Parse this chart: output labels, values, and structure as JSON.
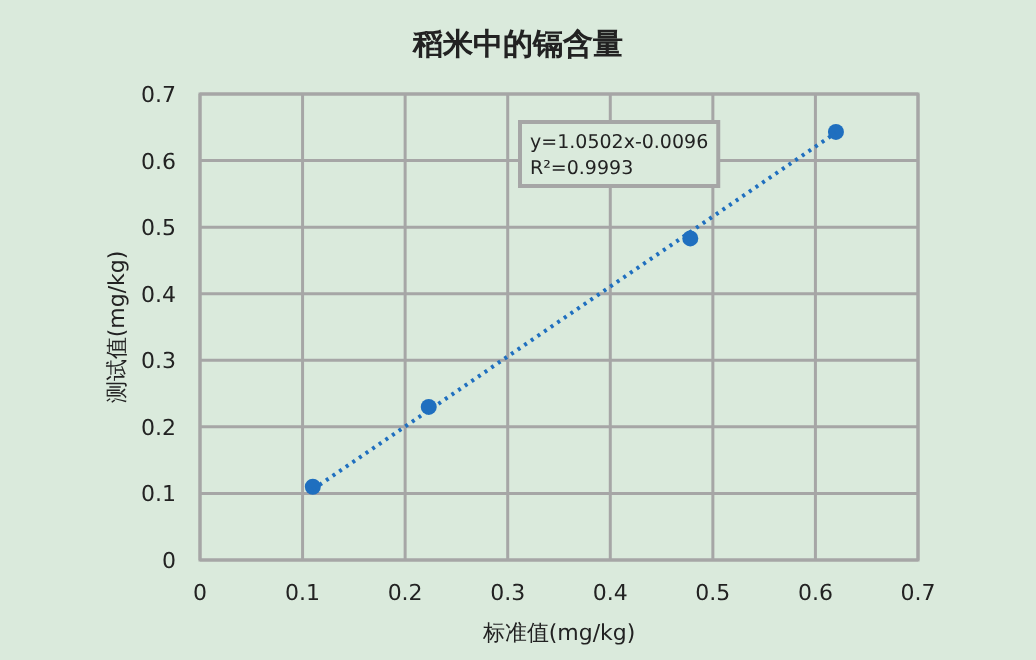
{
  "chart_data": {
    "type": "scatter",
    "title": "稻米中的镉含量",
    "xlabel": "标准值(mg/kg)",
    "ylabel": "测试值(mg/kg)",
    "xlim": [
      0,
      0.7
    ],
    "ylim": [
      0,
      0.7
    ],
    "xticks": [
      0,
      0.1,
      0.2,
      0.3,
      0.4,
      0.5,
      0.6,
      0.7
    ],
    "yticks": [
      0,
      0.1,
      0.2,
      0.3,
      0.4,
      0.5,
      0.6,
      0.7
    ],
    "grid": true,
    "series": [
      {
        "color": "#1f6fbf",
        "marker": "circle",
        "x": [
          0.11,
          0.223,
          0.478,
          0.62
        ],
        "values": [
          0.11,
          0.23,
          0.483,
          0.643
        ]
      },
      {
        "type": "line",
        "color": "#1f6fbf",
        "line_style": "dotted",
        "marker": "none",
        "x": [
          0.11,
          0.62
        ],
        "values": [
          0.106,
          0.642
        ]
      }
    ],
    "annotations": [
      "y=1.0502x-0.0096",
      "R²=0.9993"
    ]
  }
}
